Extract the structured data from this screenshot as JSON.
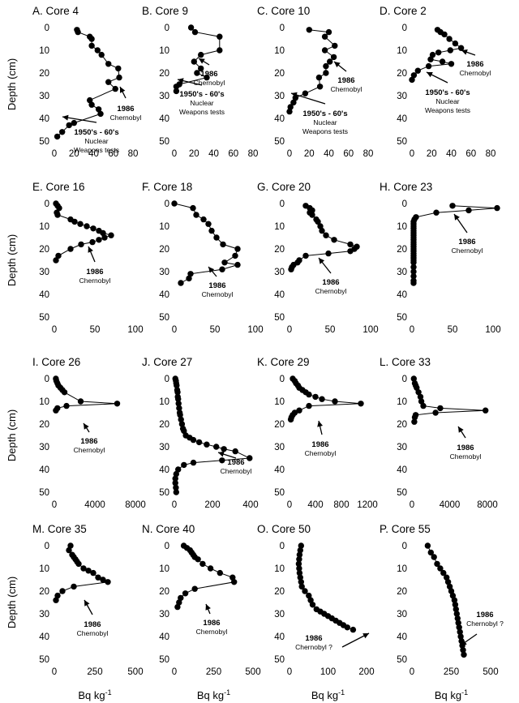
{
  "figure": {
    "ylabel": "Depth (cm)",
    "xlabel": "Bq kg",
    "xlabel_sup": "-1"
  },
  "chart_data": [
    {
      "type": "line",
      "title": "A. Core 4",
      "ylabel": "Depth (cm)",
      "xlabel": "",
      "xlim": [
        0,
        80
      ],
      "xticks": [
        0,
        20,
        40,
        60,
        80
      ],
      "ylim": [
        0,
        50
      ],
      "yticks": [
        0,
        10,
        20,
        30,
        40,
        50
      ],
      "x": [
        23,
        24,
        36,
        38,
        38,
        44,
        48,
        55,
        65,
        66,
        55,
        62,
        36,
        38,
        45,
        47,
        20,
        15,
        8,
        3
      ],
      "y": [
        1,
        2,
        4,
        5,
        8,
        10,
        12,
        16,
        18,
        22,
        24,
        27,
        32,
        34,
        36,
        38,
        42,
        43,
        46,
        48
      ],
      "annotations": [
        {
          "lines": [
            "1986",
            "Chernobyl"
          ]
        },
        {
          "lines": [
            "1950's - 60's",
            "Nuclear",
            "Weapons tests"
          ]
        }
      ]
    },
    {
      "type": "line",
      "title": "B. Core 9",
      "xlim": [
        0,
        80
      ],
      "xticks": [
        0,
        20,
        40,
        60,
        80
      ],
      "ylim": [
        0,
        50
      ],
      "yticks": [
        0,
        10,
        20,
        30,
        40,
        50
      ],
      "x": [
        17,
        21,
        46,
        46,
        27,
        20,
        27,
        23,
        33,
        5,
        2,
        2
      ],
      "y": [
        0,
        2,
        4,
        10,
        12,
        15,
        18,
        20,
        22,
        25,
        26,
        28
      ],
      "annotations": [
        {
          "lines": [
            "1986",
            "Chernobyl"
          ]
        },
        {
          "lines": [
            "1950's - 60's",
            "Nuclear",
            "Weapons tests"
          ]
        }
      ]
    },
    {
      "type": "line",
      "title": "C. Core 10",
      "xlim": [
        0,
        80
      ],
      "xticks": [
        0,
        20,
        40,
        60,
        80
      ],
      "ylim": [
        0,
        50
      ],
      "yticks": [
        0,
        10,
        20,
        30,
        40,
        50
      ],
      "x": [
        20,
        40,
        36,
        46,
        36,
        45,
        41,
        37,
        37,
        30,
        31,
        16,
        6,
        4,
        1,
        0
      ],
      "y": [
        1,
        2,
        4,
        8,
        10,
        13,
        15,
        17,
        20,
        22,
        26,
        29,
        31,
        33,
        35,
        37
      ],
      "annotations": [
        {
          "lines": [
            "1986",
            "Chernobyl"
          ]
        },
        {
          "lines": [
            "1950's - 60's",
            "Nuclear",
            "Weapons tests"
          ]
        }
      ]
    },
    {
      "type": "line",
      "title": "D. Core 2",
      "xlim": [
        0,
        80
      ],
      "xticks": [
        0,
        20,
        40,
        60,
        80
      ],
      "ylim": [
        0,
        50
      ],
      "yticks": [
        0,
        10,
        20,
        30,
        40,
        50
      ],
      "x": [
        26,
        29,
        33,
        38,
        44,
        50,
        39,
        27,
        21,
        19,
        31,
        40,
        17,
        6,
        2,
        0
      ],
      "y": [
        1,
        2,
        3,
        5,
        7,
        9,
        10,
        11,
        12,
        14,
        15,
        16,
        17,
        19,
        21,
        23
      ],
      "annotations": [
        {
          "lines": [
            "1986",
            "Chernobyl"
          ]
        },
        {
          "lines": [
            "1950's - 60's",
            "Nuclear",
            "Weapons tests"
          ]
        }
      ]
    },
    {
      "type": "line",
      "title": "E. Core 16",
      "xlim": [
        0,
        100
      ],
      "xticks": [
        0,
        50,
        100
      ],
      "ylim": [
        0,
        50
      ],
      "yticks": [
        0,
        10,
        20,
        30,
        40,
        50
      ],
      "x": [
        2,
        4,
        6,
        3,
        4,
        20,
        25,
        32,
        40,
        48,
        55,
        60,
        70,
        62,
        55,
        47,
        33,
        20,
        5,
        2
      ],
      "y": [
        0,
        1,
        2,
        4,
        5,
        7,
        8,
        9,
        10,
        11,
        12,
        13,
        14,
        15,
        16,
        17,
        18,
        20,
        23,
        25
      ],
      "annotations": [
        {
          "lines": [
            "1986",
            "Chernobyl"
          ]
        }
      ]
    },
    {
      "type": "line",
      "title": "F. Core 18",
      "xlim": [
        0,
        100
      ],
      "xticks": [
        0,
        50,
        100
      ],
      "ylim": [
        0,
        50
      ],
      "yticks": [
        0,
        10,
        20,
        30,
        40,
        50
      ],
      "x": [
        0,
        23,
        27,
        36,
        42,
        46,
        52,
        60,
        78,
        75,
        62,
        78,
        59,
        20,
        18,
        8
      ],
      "y": [
        0,
        2,
        5,
        7,
        9,
        12,
        15,
        18,
        20,
        23,
        26,
        27,
        29,
        31,
        33,
        35
      ],
      "annotations": [
        {
          "lines": [
            "1986",
            "Chernobyl"
          ]
        }
      ]
    },
    {
      "type": "line",
      "title": "G. Core 20",
      "xlim": [
        0,
        100
      ],
      "xticks": [
        0,
        50,
        100
      ],
      "ylim": [
        0,
        50
      ],
      "yticks": [
        0,
        10,
        20,
        30,
        40,
        50
      ],
      "x": [
        20,
        25,
        28,
        25,
        28,
        33,
        35,
        38,
        40,
        45,
        55,
        75,
        83,
        80,
        75,
        48,
        20,
        12,
        10,
        5,
        3,
        2
      ],
      "y": [
        1,
        2,
        3,
        4,
        5,
        7,
        8,
        10,
        12,
        14,
        16,
        18,
        19,
        20,
        21,
        22,
        23,
        25,
        26,
        27,
        28,
        29
      ],
      "annotations": [
        {
          "lines": [
            "1986",
            "Chernobyl"
          ]
        }
      ]
    },
    {
      "type": "line",
      "title": "H. Core 23",
      "xlim": [
        0,
        100
      ],
      "xticks": [
        0,
        50,
        100
      ],
      "ylim": [
        0,
        50
      ],
      "yticks": [
        0,
        10,
        20,
        30,
        40,
        50
      ],
      "x": [
        50,
        105,
        70,
        30,
        5,
        3,
        2,
        2,
        2,
        2,
        2,
        2,
        2,
        2,
        2,
        2,
        2,
        2,
        2,
        2,
        2,
        2,
        2,
        2,
        2,
        2,
        2,
        2,
        2,
        2
      ],
      "y": [
        1,
        2,
        3,
        4,
        6,
        7,
        8,
        9,
        10,
        11,
        12,
        13,
        14,
        15,
        16,
        17,
        18,
        19,
        20,
        21,
        22,
        23,
        24,
        25,
        26,
        28,
        30,
        32,
        34,
        35
      ],
      "annotations": [
        {
          "lines": [
            "1986",
            "Chernobyl"
          ]
        }
      ]
    },
    {
      "type": "line",
      "title": "I. Core 26",
      "xlim": [
        0,
        8000
      ],
      "xticks": [
        0,
        4000,
        8000
      ],
      "ylim": [
        0,
        50
      ],
      "yticks": [
        0,
        10,
        20,
        30,
        40,
        50
      ],
      "x": [
        150,
        200,
        300,
        400,
        600,
        800,
        1000,
        2600,
        6200,
        1200,
        300,
        150
      ],
      "y": [
        0,
        1,
        2,
        3,
        4,
        5,
        6,
        10,
        11,
        12,
        13,
        14
      ],
      "annotations": [
        {
          "lines": [
            "1986",
            "Chernobyl"
          ]
        }
      ]
    },
    {
      "type": "line",
      "title": "J. Core 27",
      "xlim": [
        0,
        400
      ],
      "xticks": [
        0,
        200,
        400
      ],
      "ylim": [
        0,
        50
      ],
      "yticks": [
        0,
        10,
        20,
        30,
        40,
        50
      ],
      "x": [
        5,
        8,
        10,
        12,
        15,
        17,
        18,
        20,
        22,
        25,
        28,
        30,
        35,
        40,
        45,
        50,
        60,
        80,
        100,
        130,
        170,
        220,
        260,
        320,
        395,
        250,
        100,
        50,
        20,
        10,
        5,
        5,
        8,
        10
      ],
      "y": [
        0,
        1,
        2,
        3,
        5,
        6,
        8,
        9,
        11,
        13,
        15,
        16,
        18,
        20,
        22,
        23,
        25,
        26,
        27,
        28,
        29,
        30,
        31,
        32,
        35,
        36,
        37,
        38,
        40,
        42,
        44,
        46,
        48,
        50
      ],
      "annotations": [
        {
          "lines": [
            "1986",
            "Chernobyl"
          ]
        }
      ]
    },
    {
      "type": "line",
      "title": "K. Core 29",
      "xlim": [
        0,
        1200
      ],
      "xticks": [
        0,
        400,
        800,
        1200
      ],
      "ylim": [
        0,
        50
      ],
      "yticks": [
        0,
        10,
        20,
        30,
        40,
        50
      ],
      "x": [
        50,
        80,
        100,
        130,
        150,
        200,
        250,
        300,
        400,
        500,
        700,
        1100,
        300,
        150,
        80,
        50,
        30,
        20
      ],
      "y": [
        0,
        1,
        2,
        3,
        4,
        5,
        6,
        7,
        8,
        9,
        10,
        11,
        12,
        14,
        15,
        16,
        17,
        18
      ],
      "annotations": [
        {
          "lines": [
            "1986",
            "Chernobyl"
          ]
        }
      ]
    },
    {
      "type": "line",
      "title": "L. Core 33",
      "xlim": [
        0,
        8000
      ],
      "xticks": [
        0,
        4000,
        8000
      ],
      "ylim": [
        0,
        50
      ],
      "yticks": [
        0,
        10,
        20,
        30,
        40,
        50
      ],
      "x": [
        200,
        300,
        400,
        500,
        700,
        900,
        1000,
        1200,
        3000,
        7800,
        2500,
        400,
        300,
        250
      ],
      "y": [
        0,
        2,
        3,
        4,
        6,
        8,
        10,
        12,
        13,
        14,
        15,
        16,
        17,
        19
      ],
      "annotations": [
        {
          "lines": [
            "1986",
            "Chernobyl"
          ]
        }
      ]
    },
    {
      "type": "line",
      "title": "M. Core 35",
      "xlim": [
        0,
        500
      ],
      "xticks": [
        0,
        250,
        500
      ],
      "ylim": [
        0,
        50
      ],
      "yticks": [
        0,
        10,
        20,
        30,
        40,
        50
      ],
      "x": [
        100,
        90,
        110,
        120,
        130,
        140,
        150,
        180,
        210,
        240,
        270,
        300,
        330,
        120,
        50,
        20,
        10
      ],
      "y": [
        0,
        2,
        4,
        5,
        6,
        7,
        8,
        10,
        11,
        12,
        14,
        15,
        16,
        18,
        20,
        22,
        24
      ],
      "annotations": [
        {
          "lines": [
            "1986",
            "Chernobyl"
          ]
        }
      ]
    },
    {
      "type": "line",
      "title": "N. Core 40",
      "xlim": [
        0,
        500
      ],
      "xticks": [
        0,
        250,
        500
      ],
      "ylim": [
        0,
        50
      ],
      "yticks": [
        0,
        10,
        20,
        30,
        40,
        50
      ],
      "x": [
        60,
        80,
        100,
        110,
        120,
        130,
        150,
        180,
        230,
        290,
        370,
        380,
        130,
        70,
        40,
        30,
        20
      ],
      "y": [
        0,
        1,
        2,
        3,
        4,
        5,
        6,
        8,
        10,
        12,
        14,
        16,
        19,
        21,
        23,
        25,
        27
      ],
      "annotations": [
        {
          "lines": [
            "1986",
            "Chernobyl"
          ]
        }
      ]
    },
    {
      "type": "line",
      "title": "O. Core 50",
      "xlim": [
        0,
        200
      ],
      "xticks": [
        0,
        100,
        200
      ],
      "ylim": [
        0,
        50
      ],
      "yticks": [
        0,
        10,
        20,
        30,
        40,
        50
      ],
      "x": [
        30,
        28,
        26,
        25,
        24,
        25,
        26,
        28,
        30,
        32,
        40,
        50,
        55,
        60,
        70,
        80,
        90,
        100,
        110,
        120,
        130,
        140,
        150,
        165
      ],
      "y": [
        0,
        2,
        4,
        6,
        8,
        10,
        12,
        14,
        16,
        18,
        20,
        22,
        24,
        26,
        28,
        29,
        30,
        31,
        32,
        33,
        34,
        35,
        36,
        37
      ],
      "annotations": [
        {
          "lines": [
            "1986",
            "Chernobyl ?"
          ]
        }
      ]
    },
    {
      "type": "line",
      "title": "P. Core 55",
      "xlim": [
        0,
        500
      ],
      "xticks": [
        0,
        250,
        500
      ],
      "ylim": [
        0,
        50
      ],
      "yticks": [
        0,
        10,
        20,
        30,
        40,
        50
      ],
      "x": [
        100,
        120,
        140,
        160,
        180,
        200,
        220,
        230,
        240,
        250,
        260,
        270,
        275,
        280,
        285,
        290,
        295,
        300,
        305,
        310,
        315,
        320,
        325,
        330
      ],
      "y": [
        0,
        3,
        5,
        8,
        10,
        12,
        14,
        16,
        18,
        20,
        22,
        24,
        26,
        28,
        30,
        32,
        34,
        36,
        38,
        40,
        42,
        44,
        46,
        48
      ],
      "annotations": [
        {
          "lines": [
            "1986",
            "Chernobyl ?"
          ]
        }
      ]
    }
  ]
}
